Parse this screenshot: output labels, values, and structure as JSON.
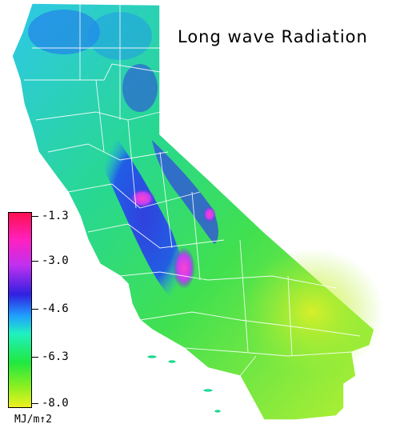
{
  "title": "Long wave Radiation",
  "legend": {
    "units": "MJ/m↑2",
    "ticks": [
      "-1.3",
      "-3.0",
      "-4.6",
      "-6.3",
      "-8.0"
    ],
    "range": [
      -8.0,
      -1.3
    ],
    "colors": [
      "#ff2060",
      "#e030f0",
      "#4020e0",
      "#20d0ff",
      "#20e040",
      "#e8f020"
    ]
  },
  "map": {
    "region": "California",
    "boundary_color": "#ffffff",
    "ocean_color": "#ffffff"
  }
}
